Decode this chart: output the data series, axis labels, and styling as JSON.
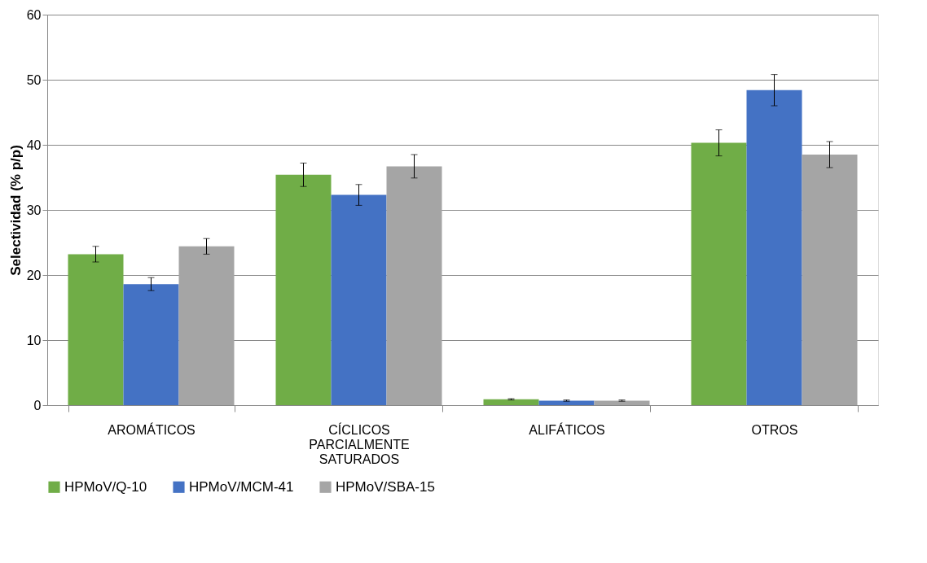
{
  "chart_data": {
    "type": "bar",
    "ylabel": "Selectividad (% p/p)",
    "categories": [
      "AROMÁTICOS",
      "CÍCLICOS PARCIALMENTE SATURADOS",
      "ALIFÁTICOS",
      "OTROS"
    ],
    "series": [
      {
        "name": "HPMoV/Q-10",
        "color": "#70ad47",
        "values": [
          23.2,
          35.4,
          0.9,
          40.3
        ],
        "errors": [
          1.2,
          1.8,
          0.1,
          2.0
        ]
      },
      {
        "name": "HPMoV/MCM-41",
        "color": "#4472c4",
        "values": [
          18.6,
          32.3,
          0.7,
          48.4
        ],
        "errors": [
          1.0,
          1.6,
          0.1,
          2.4
        ]
      },
      {
        "name": "HPMoV/SBA-15",
        "color": "#a5a5a5",
        "values": [
          24.4,
          36.7,
          0.7,
          38.5
        ],
        "errors": [
          1.2,
          1.8,
          0.1,
          2.0
        ]
      }
    ],
    "ylim": [
      0,
      60
    ],
    "yticks": [
      0,
      10,
      20,
      30,
      40,
      50,
      60
    ],
    "grid": "y",
    "legend": "bottom"
  }
}
